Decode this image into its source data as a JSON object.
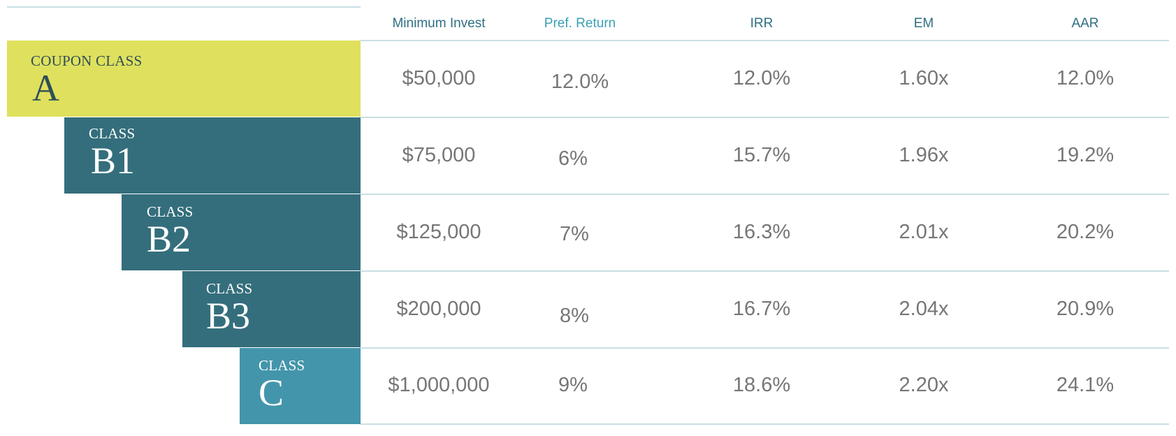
{
  "header": {
    "min_invest": "Minimum Invest",
    "pref_return": "Pref. Return",
    "irr": "IRR",
    "em": "EM",
    "aar": "AAR"
  },
  "colors": {
    "class_a": "#dfe05d",
    "class_b": "#346e7c",
    "class_c": "#4395ab",
    "header_text": "#2f6f82",
    "header_pref_text": "#3aa0b4",
    "value_text": "#767676",
    "rule": "#c8dfe3"
  },
  "rows": [
    {
      "class_word": "COUPON CLASS",
      "class_letter": "A",
      "min_invest": "$50,000",
      "pref_return": "12.0%",
      "irr": "12.0%",
      "em": "1.60x",
      "aar": "12.0%"
    },
    {
      "class_word": "CLASS",
      "class_letter": "B1",
      "min_invest": "$75,000",
      "pref_return": "6%",
      "irr": "15.7%",
      "em": "1.96x",
      "aar": "19.2%"
    },
    {
      "class_word": "CLASS",
      "class_letter": "B2",
      "min_invest": "$125,000",
      "pref_return": "7%",
      "irr": "16.3%",
      "em": "2.01x",
      "aar": "20.2%"
    },
    {
      "class_word": "CLASS",
      "class_letter": "B3",
      "min_invest": "$200,000",
      "pref_return": "8%",
      "irr": "16.7%",
      "em": "2.04x",
      "aar": "20.9%"
    },
    {
      "class_word": "CLASS",
      "class_letter": "C",
      "min_invest": "$1,000,000",
      "pref_return": "9%",
      "irr": "18.6%",
      "em": "2.20x",
      "aar": "24.1%"
    }
  ]
}
